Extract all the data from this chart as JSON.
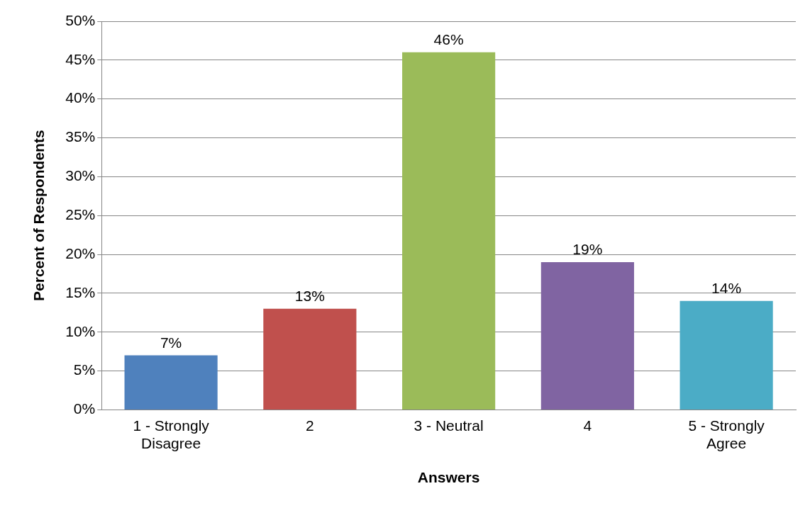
{
  "chart_data": {
    "type": "bar",
    "xlabel": "Answers",
    "ylabel": "Percent of Respondents",
    "categories": [
      "1 - Strongly Disagree",
      "2",
      "3 - Neutral",
      "4",
      "5 - Strongly Agree"
    ],
    "values": [
      7,
      13,
      46,
      19,
      14
    ],
    "colors": [
      "#4f81bd",
      "#c0504d",
      "#9bbb59",
      "#8064a2",
      "#4bacc6"
    ],
    "value_labels": [
      "7%",
      "13%",
      "46%",
      "19%",
      "14%"
    ],
    "ylim": [
      0,
      50
    ],
    "yticks": [
      {
        "value": 0,
        "label": "0%"
      },
      {
        "value": 5,
        "label": "5%"
      },
      {
        "value": 10,
        "label": "10%"
      },
      {
        "value": 15,
        "label": "15%"
      },
      {
        "value": 20,
        "label": "20%"
      },
      {
        "value": 25,
        "label": "25%"
      },
      {
        "value": 30,
        "label": "30%"
      },
      {
        "value": 35,
        "label": "35%"
      },
      {
        "value": 40,
        "label": "40%"
      },
      {
        "value": 45,
        "label": "45%"
      },
      {
        "value": 50,
        "label": "50%"
      }
    ],
    "grid": "y",
    "legend": false
  }
}
